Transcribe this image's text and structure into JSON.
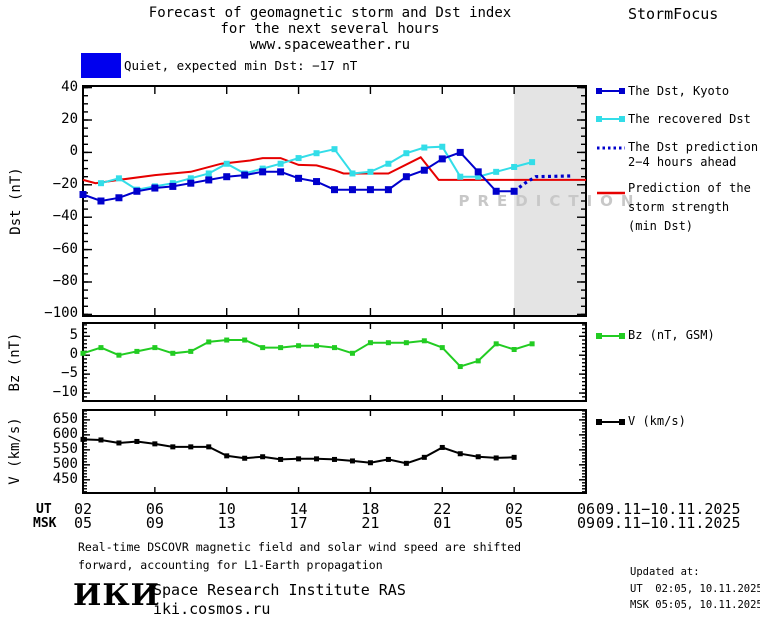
{
  "header": {
    "title_line1": "Forecast of geomagnetic storm and Dst index",
    "title_line2": "for the next several hours",
    "title_line3": "www.spaceweather.ru",
    "brand": "StormFocus"
  },
  "status": {
    "label": "Quiet, expected min Dst: −17 nT",
    "swatch_color": "#0000ee"
  },
  "prediction_band": {
    "label": "PREDICTION",
    "start_hour": 24,
    "box_color": "#e4e4e4",
    "text_color": "#c8c8c8"
  },
  "legend_main": [
    {
      "label_lines": [
        "The Dst, Kyoto"
      ],
      "color": "#0000cc",
      "style": "line-squares"
    },
    {
      "label_lines": [
        "The recovered Dst"
      ],
      "color": "#33dde8",
      "style": "line-squares"
    },
    {
      "label_lines": [
        "The Dst prediction",
        "2−4 hours ahead"
      ],
      "color": "#0000cc",
      "style": "dotted"
    },
    {
      "label_lines": [
        "Prediction of the",
        "storm strength",
        "(min Dst)"
      ],
      "color": "#e60000",
      "style": "line"
    }
  ],
  "legend_bz": {
    "label": "Bz (nT, GSM)",
    "color": "#22cc22"
  },
  "legend_v": {
    "label": "V (km/s)",
    "color": "#000000"
  },
  "xaxis": {
    "row1_label": "UT",
    "row2_label": "MSK",
    "ticks": [
      {
        "ut": "02",
        "msk": "05"
      },
      {
        "ut": "06",
        "msk": "09"
      },
      {
        "ut": "10",
        "msk": "13"
      },
      {
        "ut": "14",
        "msk": "17"
      },
      {
        "ut": "18",
        "msk": "21"
      },
      {
        "ut": "22",
        "msk": "01"
      },
      {
        "ut": "02",
        "msk": "05"
      },
      {
        "ut": "06",
        "msk": "09"
      }
    ],
    "date_row1": "09.11−10.11.2025",
    "date_row2": "09.11−10.11.2025"
  },
  "chart_data": [
    {
      "type": "line",
      "panel": "dst",
      "ylabel": "Dst (nT)",
      "x_unit": "hours since 09.11.2025 02:00 UT",
      "xlim_hours": [
        0,
        28
      ],
      "ylim": [
        -101,
        41
      ],
      "yticks": [
        {
          "v": 40,
          "label": "40"
        },
        {
          "v": 20,
          "label": "20"
        },
        {
          "v": 0,
          "label": "0"
        },
        {
          "v": -20,
          "label": "−20"
        },
        {
          "v": -40,
          "label": "−40"
        },
        {
          "v": -60,
          "label": "−60"
        },
        {
          "v": -80,
          "label": "−80"
        },
        {
          "v": -100,
          "label": "−100"
        }
      ],
      "series": [
        {
          "id": "dst-kyoto",
          "name": "The Dst, Kyoto",
          "color": "#0000cc",
          "marker": "square",
          "x": [
            0,
            1,
            2,
            3,
            4,
            5,
            6,
            7,
            8,
            9,
            10,
            11,
            12,
            13,
            14,
            15,
            16,
            17,
            18,
            19,
            20,
            21,
            22,
            23,
            24
          ],
          "values": [
            -26,
            -30,
            -28,
            -24,
            -22,
            -21,
            -19,
            -17,
            -15,
            -14,
            -12,
            -12,
            -16,
            -18,
            -23,
            -23,
            -23,
            -23,
            -15,
            -11,
            -4,
            0,
            -12,
            -24,
            -24
          ]
        },
        {
          "id": "recovered-dst",
          "name": "The recovered Dst",
          "color": "#33dde8",
          "marker": "square",
          "x": [
            1,
            2,
            3,
            4,
            5,
            6,
            7,
            8,
            9,
            10,
            11,
            12,
            13,
            14,
            15,
            16,
            17,
            18,
            19,
            20,
            21,
            22,
            23,
            24,
            25
          ],
          "values": [
            -19,
            -16,
            -23,
            -21,
            -19,
            -16,
            -13,
            -7,
            -13,
            -10,
            -7,
            -3.5,
            -0.5,
            2,
            -13,
            -12,
            -7,
            -0.5,
            3,
            3.5,
            -15,
            -15,
            -12,
            -9,
            -6
          ]
        },
        {
          "id": "dst-prediction",
          "name": "The Dst prediction 2−4 hours ahead",
          "color": "#0000cc",
          "style": "dotted",
          "points": [
            [
              24,
              -24
            ],
            [
              24.6,
              -19
            ],
            [
              25.2,
              -15
            ],
            [
              27.3,
              -14.5
            ]
          ]
        },
        {
          "id": "storm-strength",
          "name": "Prediction of the storm strength (min Dst)",
          "color": "#e60000",
          "points": [
            [
              0,
              -17
            ],
            [
              0.7,
              -19
            ],
            [
              2,
              -17
            ],
            [
              4,
              -14
            ],
            [
              6,
              -12
            ],
            [
              7.7,
              -7
            ],
            [
              9.3,
              -5
            ],
            [
              10,
              -3.5
            ],
            [
              11,
              -3.5
            ],
            [
              12,
              -7.7
            ],
            [
              13,
              -8
            ],
            [
              14,
              -11
            ],
            [
              14.5,
              -13
            ],
            [
              17,
              -13
            ],
            [
              18.8,
              -3
            ],
            [
              19.8,
              -17
            ],
            [
              28,
              -17
            ]
          ]
        }
      ]
    },
    {
      "type": "line",
      "panel": "bz",
      "ylabel": "Bz (nT)",
      "x_unit": "hours since 09.11.2025 02:00 UT",
      "xlim_hours": [
        0,
        28
      ],
      "ylim": [
        -12.1,
        8.5
      ],
      "yticks": [
        {
          "v": 5,
          "label": "5"
        },
        {
          "v": 0,
          "label": "0"
        },
        {
          "v": -5,
          "label": "−5"
        },
        {
          "v": -10,
          "label": "−10"
        }
      ],
      "series": [
        {
          "id": "bz-gsm",
          "name": "Bz (nT, GSM)",
          "color": "#22cc22",
          "marker": "square",
          "x": [
            0,
            1,
            2,
            3,
            4,
            5,
            6,
            7,
            8,
            9,
            10,
            11,
            12,
            13,
            14,
            15,
            16,
            17,
            18,
            19,
            20,
            21,
            22,
            23,
            24,
            25
          ],
          "values": [
            0.5,
            2,
            0,
            1,
            2,
            0.5,
            1,
            3.5,
            4,
            4,
            2,
            2,
            2.5,
            2.5,
            2,
            0.5,
            3.3,
            3.3,
            3.3,
            3.8,
            2,
            -3,
            -1.5,
            3,
            1.5,
            3
          ]
        }
      ]
    },
    {
      "type": "line",
      "panel": "v",
      "ylabel": "V (km/s)",
      "x_unit": "hours since 09.11.2025 02:00 UT",
      "xlim_hours": [
        0,
        28
      ],
      "ylim": [
        406,
        683
      ],
      "yticks": [
        {
          "v": 650,
          "label": "650"
        },
        {
          "v": 600,
          "label": "600"
        },
        {
          "v": 550,
          "label": "550"
        },
        {
          "v": 500,
          "label": "500"
        },
        {
          "v": 450,
          "label": "450"
        }
      ],
      "series": [
        {
          "id": "solar-wind-speed",
          "name": "V (km/s)",
          "color": "#000000",
          "marker": "square",
          "x": [
            0,
            1,
            2,
            3,
            4,
            5,
            6,
            7,
            8,
            9,
            10,
            11,
            12,
            13,
            14,
            15,
            16,
            17,
            18,
            19,
            20,
            21,
            22,
            23,
            24
          ],
          "values": [
            585,
            583,
            573,
            578,
            570,
            560,
            560,
            560,
            530,
            522,
            527,
            518,
            520,
            520,
            518,
            513,
            507,
            518,
            505,
            525,
            558,
            537,
            527,
            523,
            525
          ]
        }
      ]
    }
  ],
  "footnote": {
    "line1": "Real-time DSCOVR magnetic field and solar wind speed are shifted",
    "line2": "forward, accounting for L1-Earth propagation"
  },
  "footer": {
    "logo": "ИКИ",
    "institute": "Space Research Institute RAS",
    "site": "iki.cosmos.ru",
    "updated_label": "Updated at:",
    "updated_ut": "UT  02:05, 10.11.2025",
    "updated_msk": "MSK 05:05, 10.11.2025"
  }
}
